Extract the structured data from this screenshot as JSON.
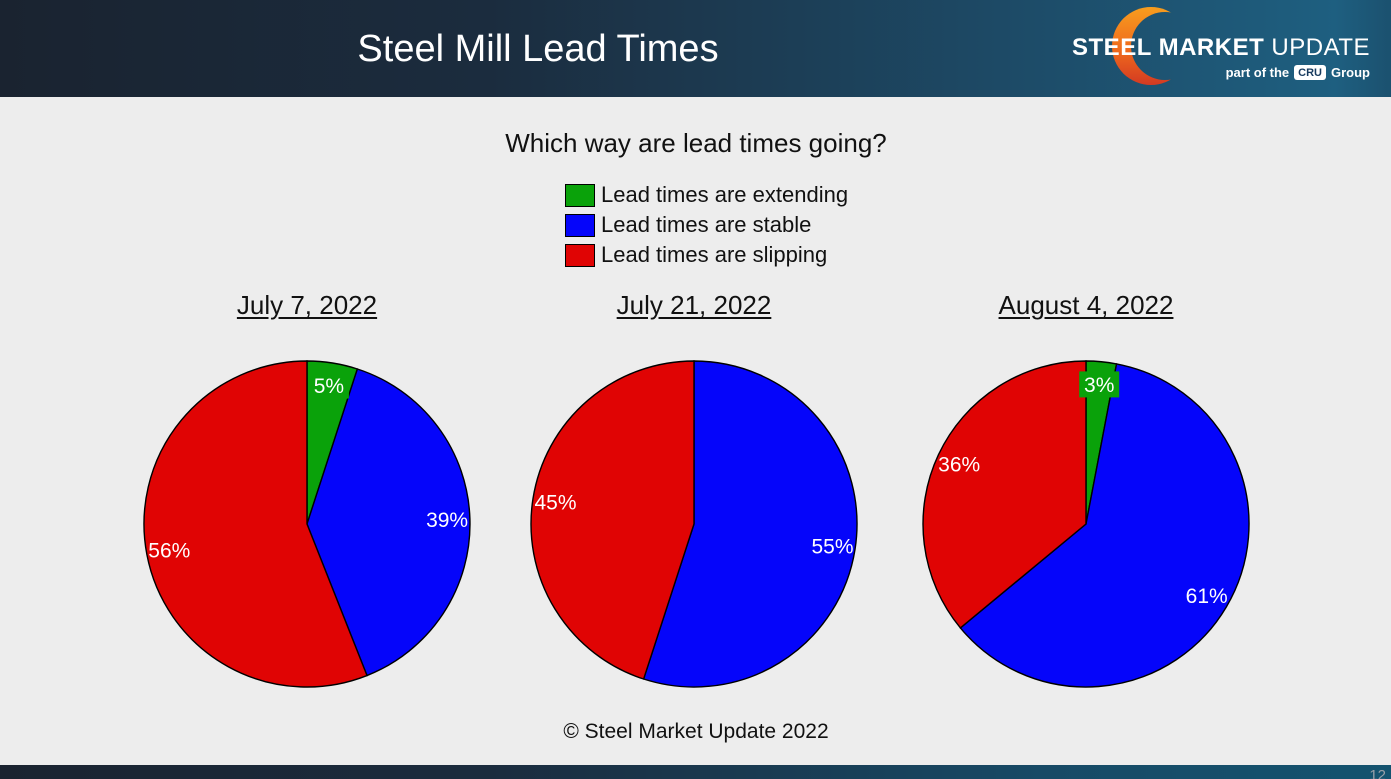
{
  "header": {
    "title": "Steel Mill Lead Times",
    "logo": {
      "brand_bold": "STEEL MARKET",
      "brand_light": "UPDATE",
      "tagline_prefix": "part of the",
      "tagline_badge": "CRU",
      "tagline_suffix": "Group"
    }
  },
  "subtitle": "Which way are lead times going?",
  "legend": [
    {
      "label": "Lead times are extending",
      "color": "#0aa20a"
    },
    {
      "label": "Lead times are stable",
      "color": "#0505fa"
    },
    {
      "label": "Lead times are slipping",
      "color": "#e00404"
    }
  ],
  "chart_data": [
    {
      "type": "pie",
      "title": "July 7, 2022",
      "start_angle_deg": 0,
      "direction": "clockwise",
      "slices": [
        {
          "label": "Lead times are extending",
          "value": 5,
          "display": "5%",
          "color": "#0aa20a",
          "label_bg": true
        },
        {
          "label": "Lead times are stable",
          "value": 39,
          "display": "39%",
          "color": "#0505fa"
        },
        {
          "label": "Lead times are slipping",
          "value": 56,
          "display": "56%",
          "color": "#e00404"
        }
      ]
    },
    {
      "type": "pie",
      "title": "July 21, 2022",
      "start_angle_deg": 0,
      "direction": "clockwise",
      "slices": [
        {
          "label": "Lead times are stable",
          "value": 55,
          "display": "55%",
          "color": "#0505fa"
        },
        {
          "label": "Lead times are slipping",
          "value": 45,
          "display": "45%",
          "color": "#e00404"
        }
      ]
    },
    {
      "type": "pie",
      "title": "August 4, 2022",
      "start_angle_deg": 0,
      "direction": "clockwise",
      "slices": [
        {
          "label": "Lead times are extending",
          "value": 3,
          "display": "3%",
          "color": "#0aa20a",
          "label_bg": true
        },
        {
          "label": "Lead times are stable",
          "value": 61,
          "display": "61%",
          "color": "#0505fa"
        },
        {
          "label": "Lead times are slipping",
          "value": 36,
          "display": "36%",
          "color": "#e00404"
        }
      ]
    }
  ],
  "footer": {
    "copyright": "© Steel Market Update 2022",
    "page_number": "12"
  },
  "theme": {
    "header_gradient_left": "#1a2330",
    "header_gradient_right": "#1e5f80",
    "background": "#ededed",
    "logo_orange": "#f79d1e",
    "logo_red": "#d33a22",
    "label_text": "#ffffff"
  }
}
